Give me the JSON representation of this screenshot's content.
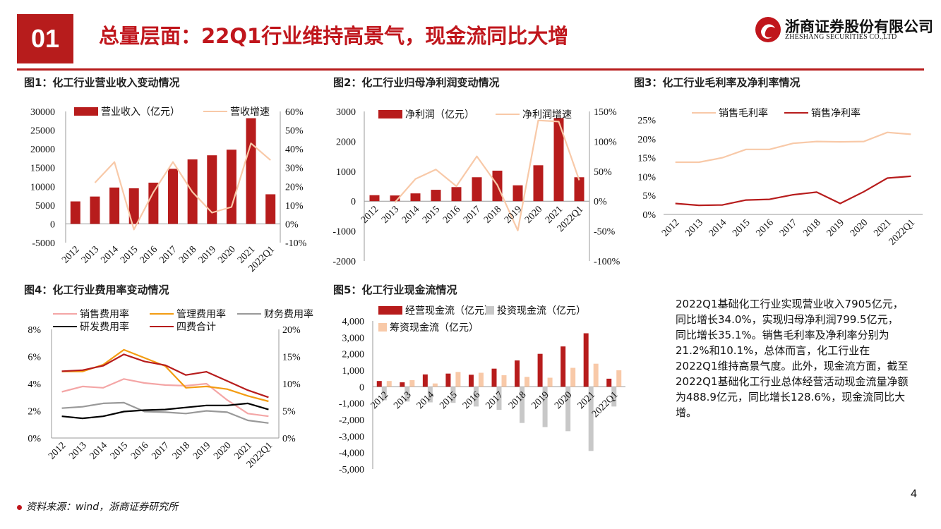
{
  "header": {
    "section_number": "01",
    "title": "总量层面：22Q1行业维持高景气，现金流同比大增",
    "logo_cn": "浙商证券股份有限公司",
    "logo_en": "ZHESHANG SECURITIES CO.,LTD"
  },
  "colors": {
    "red": "#b71c1c",
    "peach": "#f8c9a8",
    "orange": "#f39c12",
    "gray": "#999999",
    "black": "#000000",
    "pink": "#f4a6a6",
    "lightgray": "#c8c8c8"
  },
  "figures": [
    {
      "title": "图1：化工行业营业收入变动情况"
    },
    {
      "title": "图2：化工行业归母净利润变动情况"
    },
    {
      "title": "图3：化工行业毛利率及净利率情况"
    },
    {
      "title": "图4：化工行业费用率变动情况"
    },
    {
      "title": "图5：化工行业现金流情况"
    }
  ],
  "chart_data": [
    {
      "type": "bar+line",
      "title": "图1：化工行业营业收入变动情况",
      "categories": [
        "2012",
        "2013",
        "2014",
        "2015",
        "2016",
        "2017",
        "2018",
        "2019",
        "2020",
        "2021",
        "2022Q1"
      ],
      "series": [
        {
          "name": "营业收入（亿元）",
          "type": "bar",
          "axis": "left",
          "values": [
            6000,
            7300,
            9700,
            9500,
            11000,
            14700,
            17200,
            18300,
            19800,
            28200,
            7900
          ]
        },
        {
          "name": "营收增速",
          "type": "line",
          "axis": "right",
          "values": [
            null,
            22,
            33,
            -3,
            17,
            33,
            17,
            6,
            9,
            43,
            34
          ]
        }
      ],
      "left_ticks": [
        "30000",
        "25000",
        "20000",
        "15000",
        "10000",
        "5000",
        "0",
        "-5000"
      ],
      "right_ticks": [
        "60%",
        "50%",
        "40%",
        "30%",
        "20%",
        "10%",
        "0%",
        "-10%"
      ],
      "ylim_left": [
        -5000,
        30000
      ],
      "ylim_right": [
        -10,
        60
      ]
    },
    {
      "type": "bar+line",
      "title": "图2：化工行业归母净利润变动情况",
      "categories": [
        "2012",
        "2013",
        "2014",
        "2015",
        "2016",
        "2017",
        "2018",
        "2019",
        "2020",
        "2021",
        "2022Q1"
      ],
      "series": [
        {
          "name": "净利润（亿元）",
          "type": "bar",
          "axis": "left",
          "values": [
            200,
            190,
            260,
            380,
            470,
            800,
            1020,
            530,
            1200,
            2780,
            800
          ]
        },
        {
          "name": "净利润增速",
          "type": "line",
          "axis": "right",
          "values": [
            null,
            -2,
            37,
            53,
            25,
            75,
            27,
            -49,
            135,
            133,
            35
          ]
        }
      ],
      "left_ticks": [
        "3000",
        "2000",
        "1000",
        "0",
        "-1000",
        "-2000"
      ],
      "right_ticks": [
        "150%",
        "100%",
        "50%",
        "0%",
        "-50%",
        "-100%"
      ],
      "ylim_left": [
        -2000,
        3000
      ],
      "ylim_right": [
        -100,
        150
      ]
    },
    {
      "type": "line",
      "title": "图3：化工行业毛利率及净利率情况",
      "categories": [
        "2012",
        "2013",
        "2014",
        "2015",
        "2016",
        "2017",
        "2018",
        "2019",
        "2020",
        "2021",
        "2022Q1"
      ],
      "series": [
        {
          "name": "销售毛利率",
          "values": [
            13.8,
            13.8,
            15,
            17.2,
            17.2,
            18.8,
            19.3,
            19.2,
            19.3,
            21.7,
            21.2
          ]
        },
        {
          "name": "销售净利率",
          "values": [
            2.9,
            2.4,
            2.5,
            3.8,
            4.0,
            5.2,
            5.9,
            2.9,
            6,
            9.6,
            10.1
          ]
        }
      ],
      "left_ticks": [
        "25%",
        "20%",
        "15%",
        "10%",
        "5%",
        "0%"
      ],
      "ylim": [
        0,
        25
      ]
    },
    {
      "type": "line",
      "title": "图4：化工行业费用率变动情况",
      "categories": [
        "2012",
        "2013",
        "2014",
        "2015",
        "2016",
        "2017",
        "2018",
        "2019",
        "2020",
        "2021",
        "2022Q1"
      ],
      "series": [
        {
          "name": "销售费用率",
          "axis": "left",
          "values": [
            3.4,
            3.8,
            3.7,
            4.35,
            4.05,
            3.9,
            3.85,
            4.0,
            2.8,
            1.8,
            1.6
          ]
        },
        {
          "name": "管理费用率",
          "axis": "left",
          "values": [
            4.9,
            4.9,
            5.4,
            6.5,
            5.9,
            5.3,
            3.7,
            3.8,
            3.6,
            3.1,
            2.7
          ]
        },
        {
          "name": "财务费用率",
          "axis": "left",
          "values": [
            2.2,
            2.3,
            2.55,
            2.6,
            1.95,
            1.9,
            1.8,
            2.0,
            1.9,
            1.3,
            1.1
          ]
        },
        {
          "name": "研发费用率",
          "axis": "left",
          "values": [
            1.6,
            1.45,
            1.6,
            1.95,
            2.05,
            2.1,
            2.25,
            2.4,
            2.4,
            2.55,
            2.1
          ]
        },
        {
          "name": "四费合计",
          "axis": "right",
          "values": [
            12.3,
            12.5,
            13.3,
            15.4,
            14.1,
            13.4,
            11.6,
            12.2,
            10.5,
            8.8,
            7.5
          ]
        }
      ],
      "left_ticks": [
        "8%",
        "6%",
        "4%",
        "2%",
        "0%"
      ],
      "right_ticks": [
        "20%",
        "15%",
        "10%",
        "5%",
        "0%"
      ],
      "ylim_left": [
        0,
        8
      ],
      "ylim_right": [
        0,
        20
      ]
    },
    {
      "type": "bar",
      "title": "图5：化工行业现金流情况",
      "categories": [
        "2012",
        "2013",
        "2014",
        "2015",
        "2016",
        "2017",
        "2018",
        "2019",
        "2020",
        "2021",
        "2022Q1"
      ],
      "series": [
        {
          "name": "经营现金流（亿元）",
          "values": [
            350,
            270,
            750,
            800,
            730,
            1100,
            1600,
            2000,
            2450,
            3250,
            490
          ]
        },
        {
          "name": "投资现金流（亿元）",
          "values": [
            -820,
            -900,
            -950,
            -980,
            -1200,
            -1400,
            -2200,
            -2450,
            -2700,
            -3900,
            -1200
          ]
        },
        {
          "name": "筹资现金流（亿元）",
          "values": [
            350,
            400,
            200,
            900,
            850,
            700,
            600,
            550,
            1150,
            1400,
            1000
          ]
        }
      ],
      "left_ticks": [
        "4,000",
        "3,000",
        "2,000",
        "1,000",
        "0",
        "-1,000",
        "-2,000",
        "-3,000",
        "-4,000",
        "-5,000"
      ],
      "ylim": [
        -5000,
        4000
      ]
    }
  ],
  "summary": {
    "text": "2022Q1基础化工行业实现营业收入7905亿元，同比增长34.0%，实现归母净利润799.5亿元，同比增长35.1%。销售毛利率及净利率分别为21.2%和10.1%，总体而言，化工行业在2022Q1维持高景气度。此外，现金流方面，截至2022Q1基础化工行业总体经营活动现金流量净额为488.9亿元，同比增长128.6%，现金流同比大增。"
  },
  "footer": {
    "source": "资料来源：wind，浙商证券研究所",
    "page": "4"
  }
}
